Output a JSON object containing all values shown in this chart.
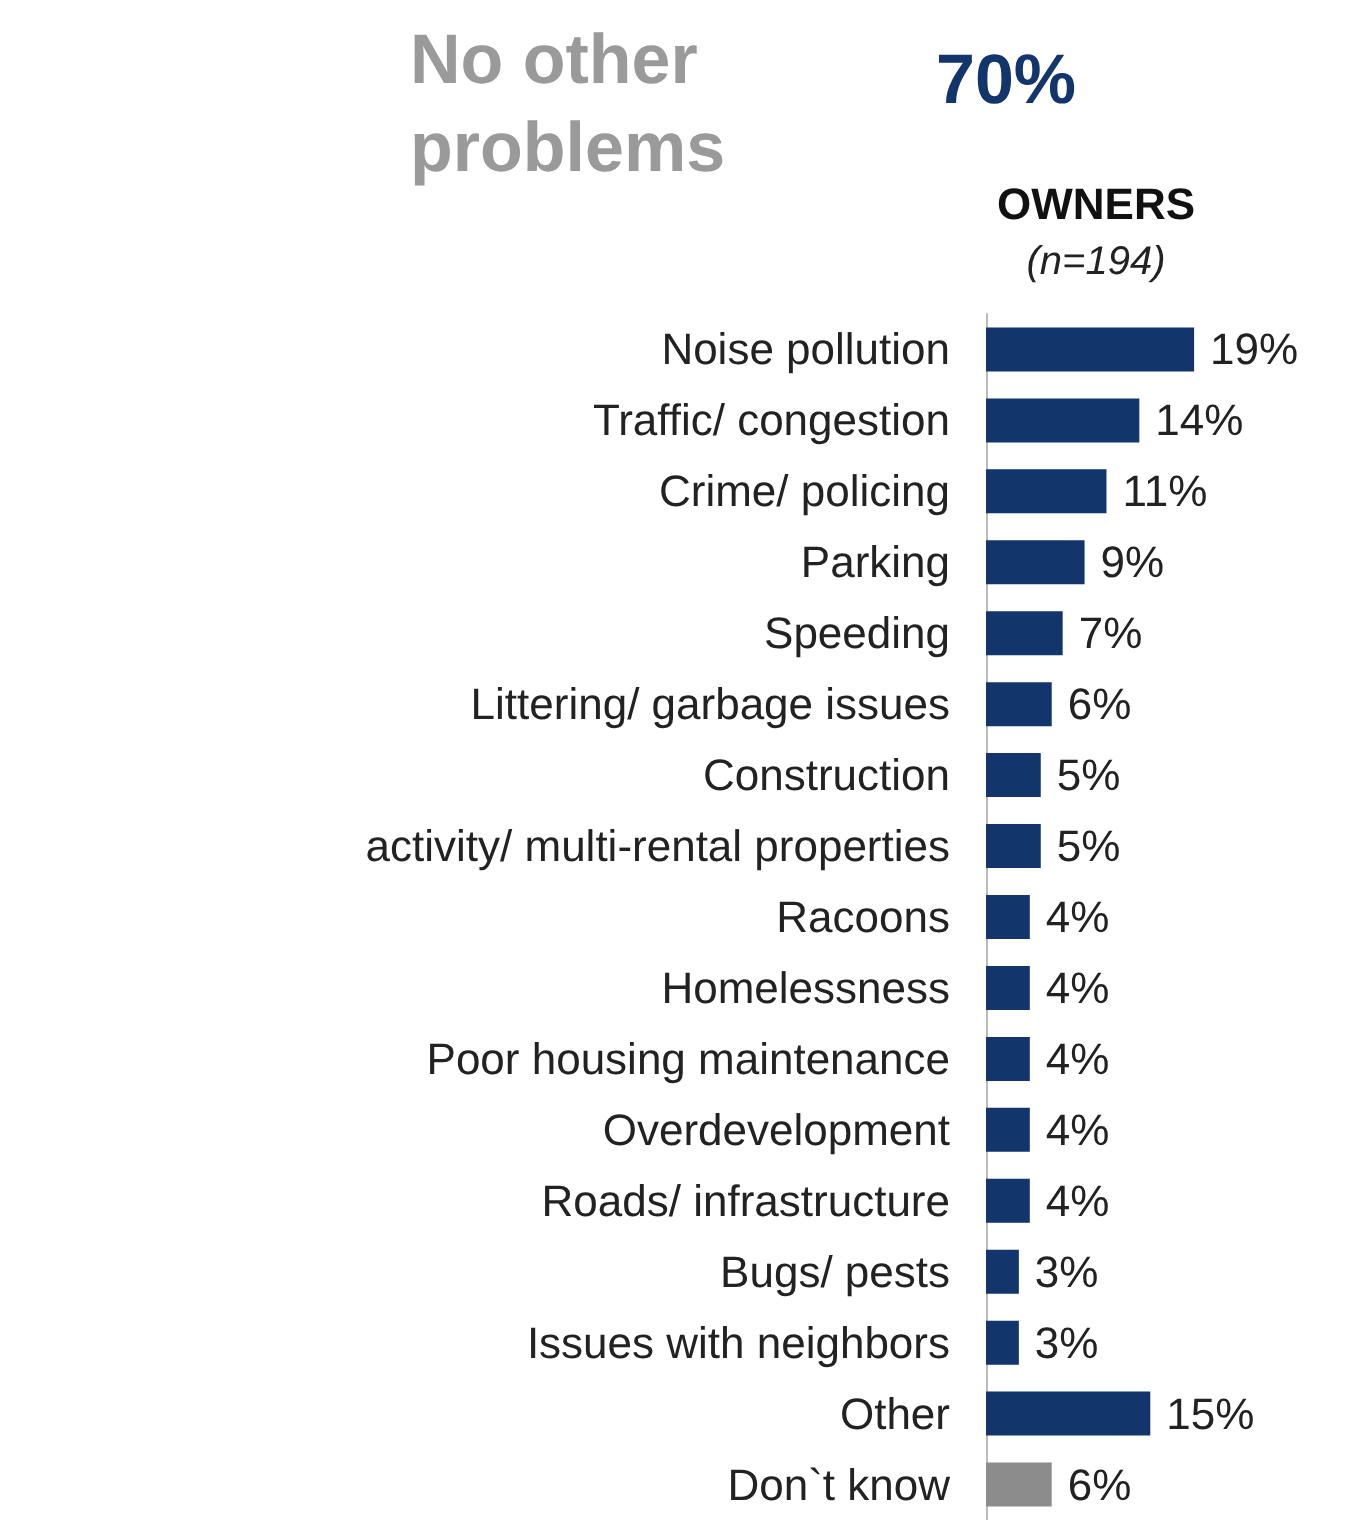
{
  "chart_data": {
    "type": "bar",
    "orientation": "horizontal",
    "title": "OWNERS",
    "subtitle": "(n=194)",
    "annotations": [
      "No other problems",
      "70%"
    ],
    "categories": [
      "Noise pollution",
      "Traffic/ congestion",
      "Crime/ policing",
      "Parking",
      "Speeding",
      "Littering/ garbage issues",
      "Construction",
      "activity/ multi-rental properties",
      "Racoons",
      "Homelessness",
      "Poor housing maintenance",
      "Overdevelopment",
      "Roads/ infrastructure",
      "Bugs/ pests",
      "Issues with neighbors",
      "Other",
      "Don`t know"
    ],
    "values": [
      19,
      14,
      11,
      9,
      7,
      6,
      5,
      5,
      4,
      4,
      4,
      4,
      4,
      3,
      3,
      15,
      6
    ],
    "value_labels": [
      "19%",
      "14%",
      "11%",
      "9%",
      "7%",
      "6%",
      "5%",
      "5%",
      "4%",
      "4%",
      "4%",
      "4%",
      "4%",
      "3%",
      "3%",
      "15%",
      "6%"
    ],
    "colors": [
      "#12356b",
      "#12356b",
      "#12356b",
      "#12356b",
      "#12356b",
      "#12356b",
      "#12356b",
      "#12356b",
      "#12356b",
      "#12356b",
      "#12356b",
      "#12356b",
      "#12356b",
      "#12356b",
      "#12356b",
      "#12356b",
      "#8c8c8c"
    ],
    "grid": false
  }
}
